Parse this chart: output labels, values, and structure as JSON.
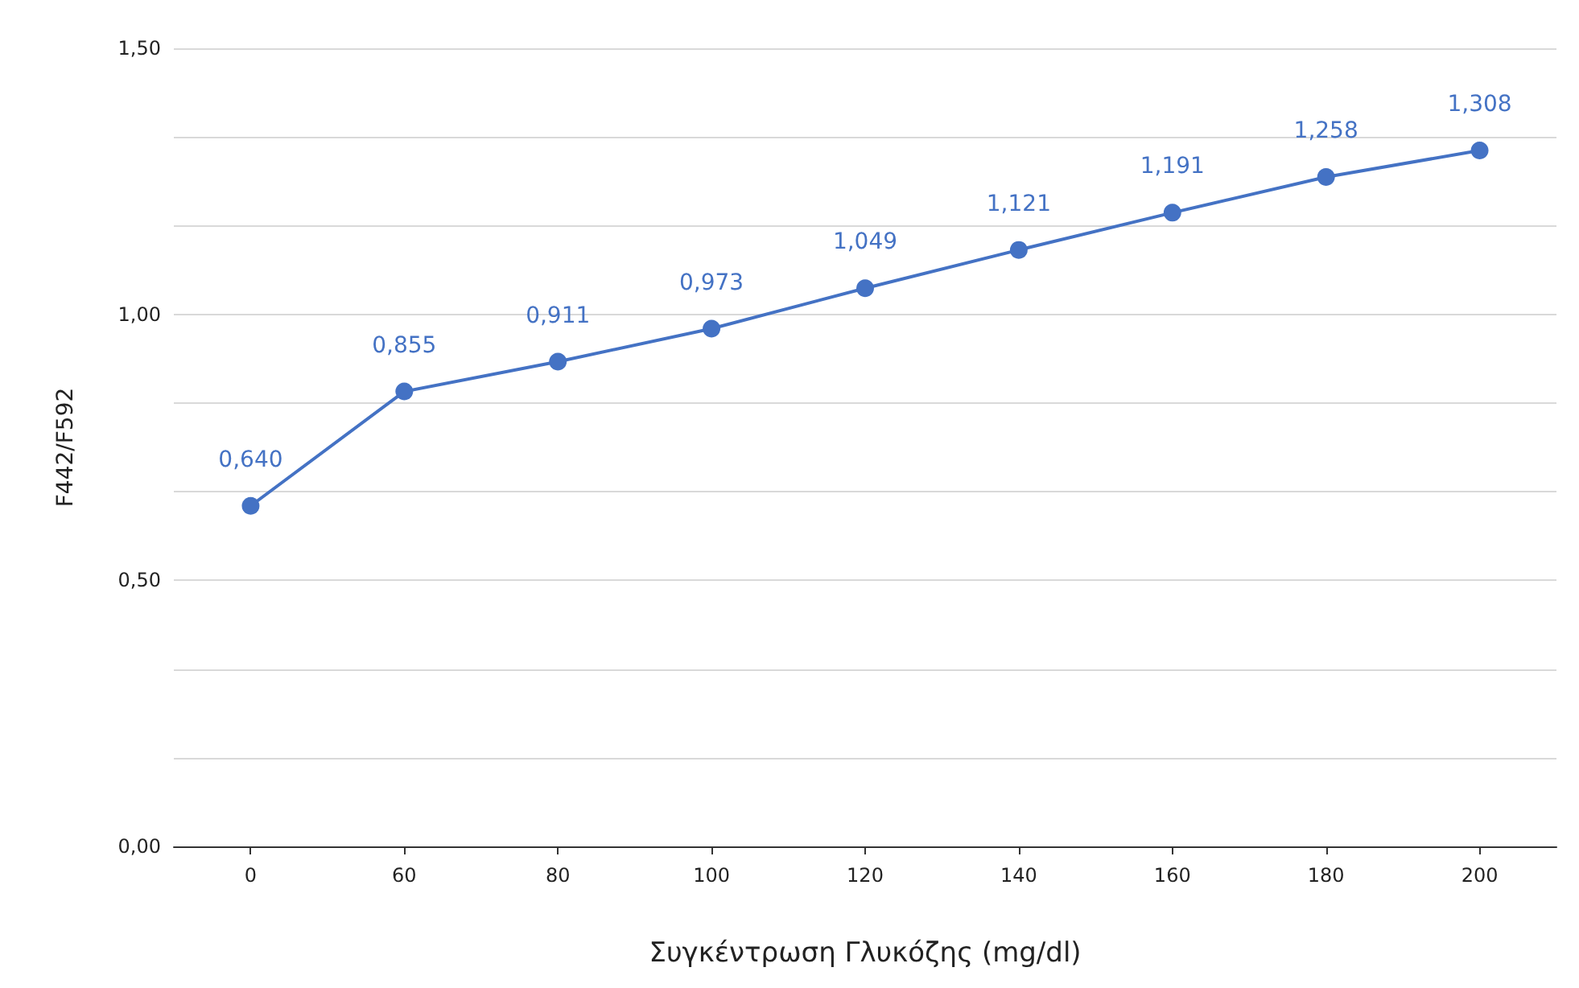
{
  "chart_data": {
    "type": "line",
    "xlabel": "Συγκέντρωση Γλυκόζης (mg/dl)",
    "ylabel": "F442/F592",
    "categories": [
      "0",
      "60",
      "80",
      "100",
      "120",
      "140",
      "160",
      "180",
      "200"
    ],
    "series": [
      {
        "color": "#4472c4",
        "values": [
          0.64,
          0.855,
          0.911,
          0.973,
          1.049,
          1.121,
          1.191,
          1.258,
          1.308
        ],
        "value_labels": [
          "0,640",
          "0,855",
          "0,911",
          "0,973",
          "1,049",
          "1,121",
          "1,191",
          "1,258",
          "1,308"
        ]
      }
    ],
    "ylim": [
      0,
      1.5
    ],
    "yticks": [
      {
        "value": 0,
        "label": "0,00"
      },
      {
        "value": 0.167,
        "label": null
      },
      {
        "value": 0.333,
        "label": null
      },
      {
        "value": 0.5,
        "label": "0,50"
      },
      {
        "value": 0.667,
        "label": null
      },
      {
        "value": 0.833,
        "label": null
      },
      {
        "value": 1,
        "label": "1,00"
      },
      {
        "value": 1.167,
        "label": null
      },
      {
        "value": 1.333,
        "label": null
      },
      {
        "value": 1.5,
        "label": "1,50"
      }
    ],
    "grid": "y",
    "marker": "circle",
    "line_style": "solid"
  }
}
